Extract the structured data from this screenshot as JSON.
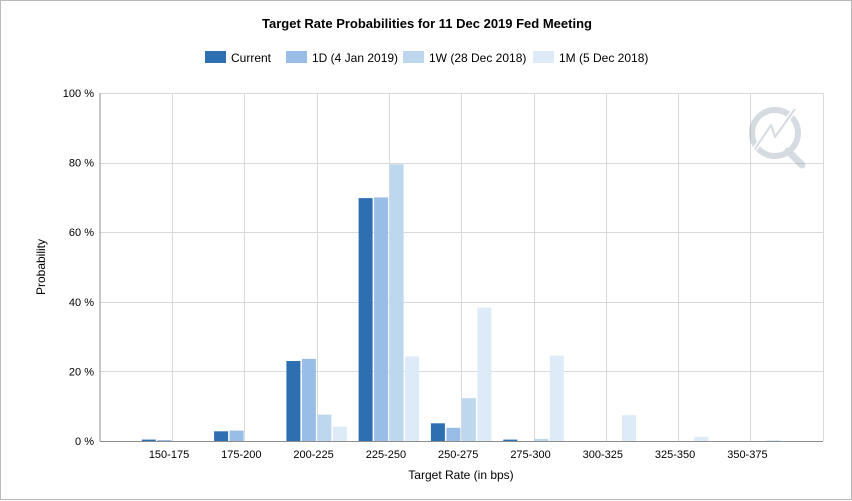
{
  "chart_data": {
    "type": "bar",
    "title": "Target Rate Probabilities for 11 Dec 2019 Fed Meeting",
    "xlabel": "Target Rate (in bps)",
    "ylabel": "Probability",
    "categories": [
      "150-175",
      "175-200",
      "200-225",
      "225-250",
      "250-275",
      "275-300",
      "300-325",
      "325-350",
      "350-375"
    ],
    "ylim": [
      0,
      100
    ],
    "yticks": [
      0,
      20,
      40,
      60,
      80,
      100
    ],
    "ytick_labels": [
      "0 %",
      "20 %",
      "40 %",
      "60 %",
      "80 %",
      "100 %"
    ],
    "grid": true,
    "legend_position": "top",
    "series": [
      {
        "name": "Current",
        "color": "#2e6fb2",
        "values": [
          0.4,
          2.8,
          23.0,
          69.8,
          5.1,
          0.4,
          0.0,
          0.0,
          0.0
        ]
      },
      {
        "name": "1D (4 Jan 2019)",
        "color": "#98bde6",
        "values": [
          0.3,
          3.0,
          23.6,
          70.0,
          3.8,
          0.0,
          0.0,
          0.0,
          0.0
        ]
      },
      {
        "name": "1W (28 Dec 2018)",
        "color": "#bdd7ee",
        "values": [
          0.0,
          0.0,
          7.6,
          79.5,
          12.3,
          0.6,
          0.0,
          0.0,
          0.0
        ]
      },
      {
        "name": "1M (5 Dec 2018)",
        "color": "#ddeaf7",
        "values": [
          0.0,
          0.0,
          4.1,
          24.3,
          38.3,
          24.5,
          7.4,
          1.2,
          0.2
        ]
      }
    ]
  },
  "watermark": {
    "icon": "quikstrike-logo-icon"
  }
}
